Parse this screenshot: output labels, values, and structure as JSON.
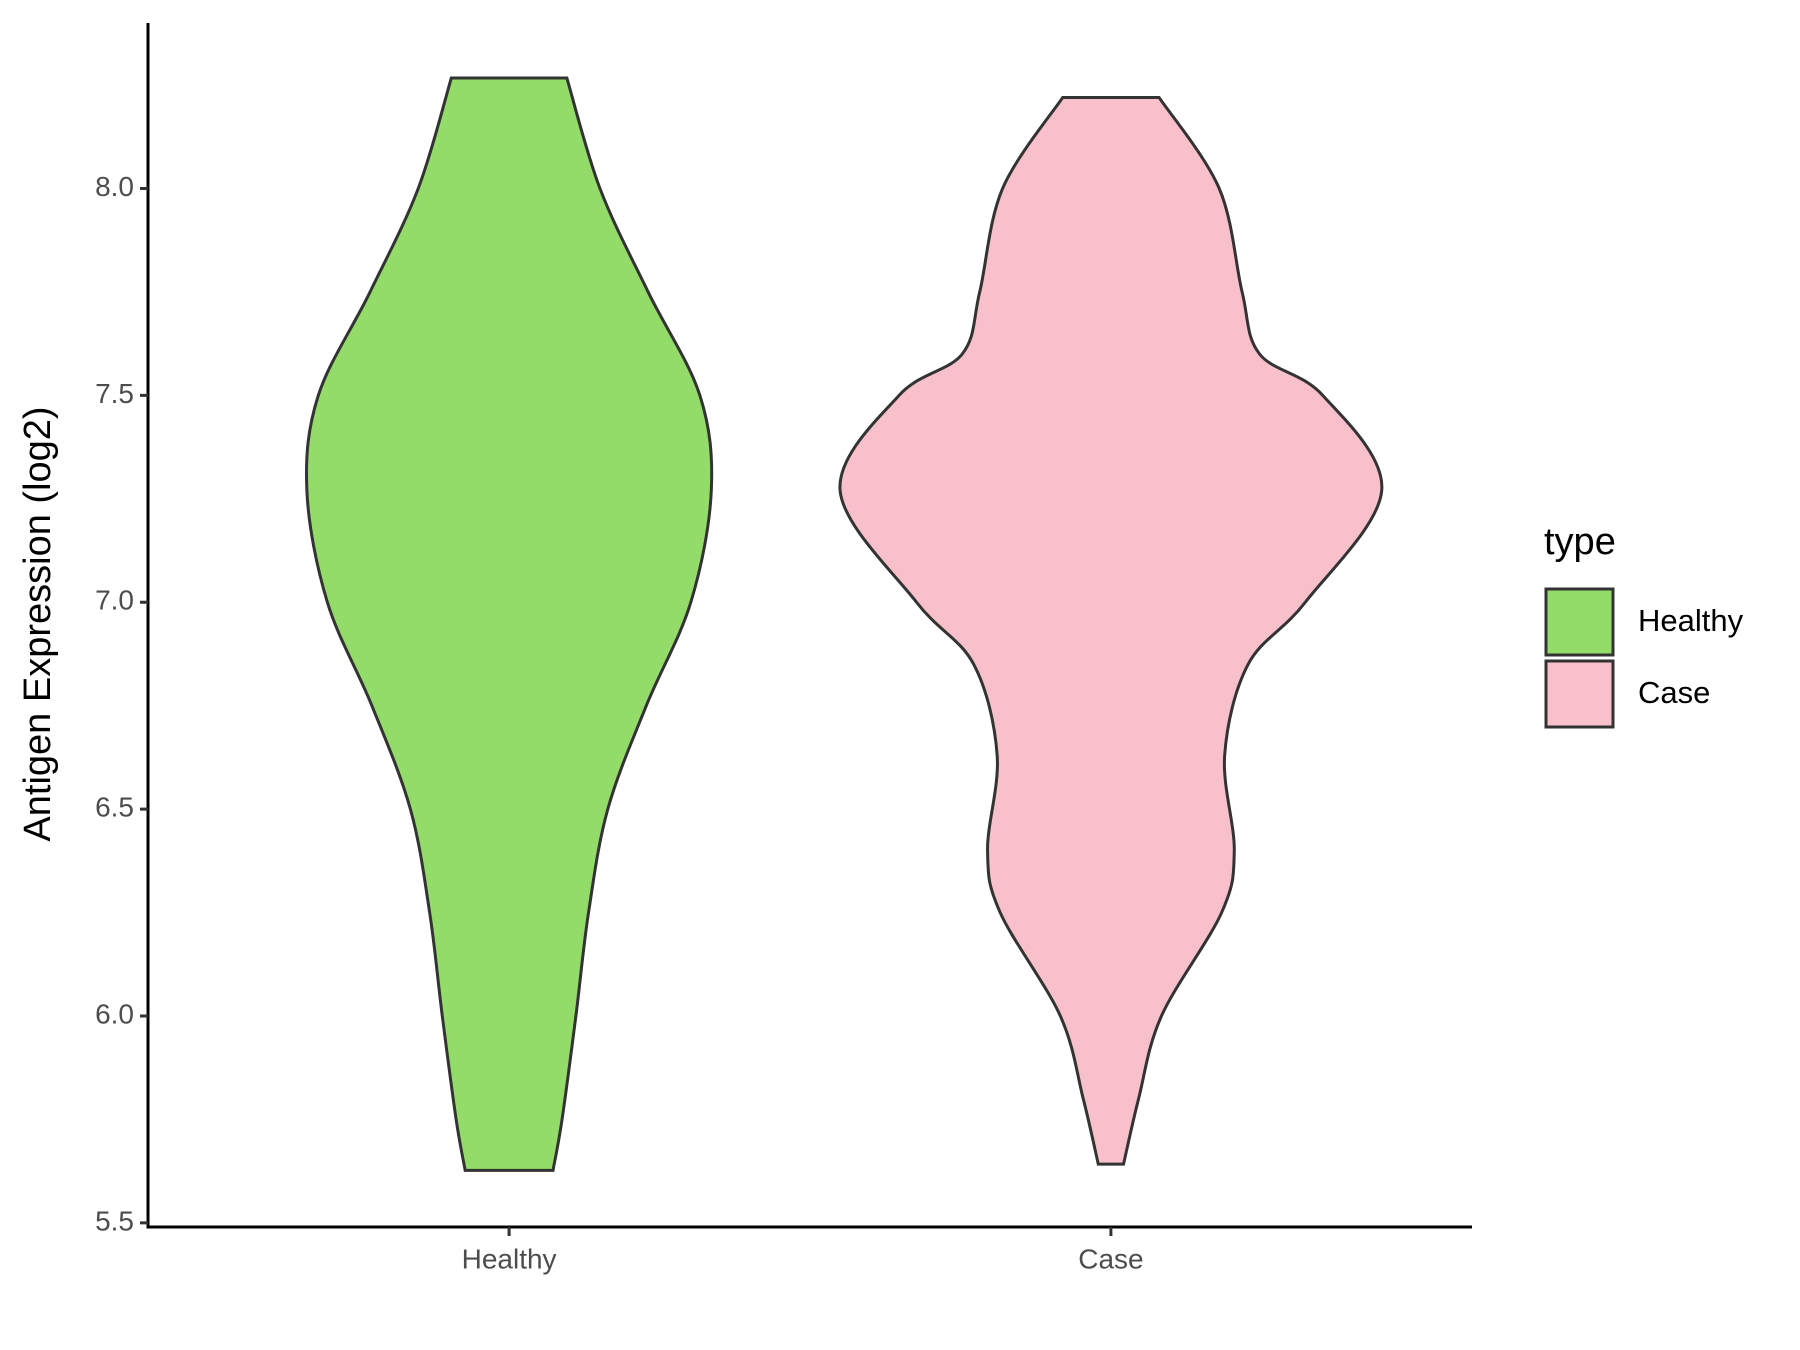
{
  "chart_data": {
    "type": "violin",
    "y_label": "Antigen Expression (log2)",
    "categories": [
      "Healthy",
      "Case"
    ],
    "series": [
      {
        "name": "Healthy",
        "color": "#94dc6a",
        "y": [
          8.267,
          8.0,
          7.75,
          7.5,
          7.27,
          7.0,
          6.75,
          6.5,
          6.25,
          6.0,
          5.75,
          5.627
        ],
        "half_width": [
          0.096,
          0.151,
          0.231,
          0.317,
          0.336,
          0.302,
          0.228,
          0.164,
          0.132,
          0.111,
          0.088,
          0.073
        ]
      },
      {
        "name": "Case",
        "color": "#f7c0cb",
        "y": [
          8.22,
          8.0,
          7.75,
          7.6,
          7.5,
          7.27,
          7.0,
          6.85,
          6.63,
          6.4,
          6.25,
          6.0,
          5.8,
          5.642
        ],
        "half_width": [
          0.08,
          0.18,
          0.218,
          0.247,
          0.352,
          0.45,
          0.323,
          0.228,
          0.189,
          0.205,
          0.184,
          0.084,
          0.046,
          0.021
        ]
      }
    ],
    "ylim": [
      5.49,
      8.4
    ],
    "yticks": [
      5.5,
      {
        "value": 6,
        "label": "6.0"
      },
      6.5,
      {
        "value": 7,
        "label": "7.0"
      },
      7.5,
      {
        "value": 8,
        "label": "8.0"
      }
    ],
    "legend_title": "type",
    "legend": "right"
  }
}
